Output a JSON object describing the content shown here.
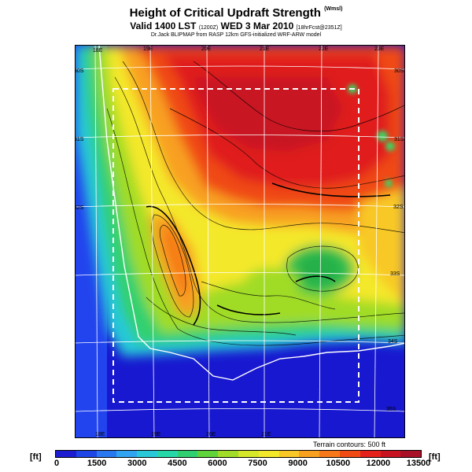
{
  "title": {
    "main": "Height of Critical Updraft Strength",
    "main_units": "(Wmsl)",
    "valid": "Valid 1400 LST",
    "valid_utc": "(1200Z)",
    "valid_date": "WED 3 Mar 2010",
    "valid_tail": "[18hrFcst@2351Z]",
    "credit": "Dr.Jack BLIPMAP from RASP 12km GFS-initialized WRF-ARW model"
  },
  "map": {
    "lon_labels": [
      "18E",
      "19E",
      "20E",
      "21E",
      "22E",
      "23E"
    ],
    "lat_labels": [
      "30S",
      "31S",
      "32S",
      "33S",
      "34S",
      "35S"
    ],
    "terrain_note": "Terrain contours: 500 ft"
  },
  "colorbar": {
    "unit_left": "[ft]",
    "unit_right": "[ft]",
    "tick_labels": [
      "0",
      "1500",
      "3000",
      "4500",
      "6000",
      "7500",
      "9000",
      "10500",
      "12000",
      "13500"
    ],
    "colors": [
      "#1c1cd0",
      "#1e46e6",
      "#2a78f0",
      "#30a4f0",
      "#28c8d8",
      "#26d8a8",
      "#30d070",
      "#60d23a",
      "#a0dc28",
      "#d6e628",
      "#f4e82a",
      "#f8c828",
      "#f8a020",
      "#f67818",
      "#f04a14",
      "#e4201a",
      "#c81420",
      "#a81028"
    ]
  }
}
